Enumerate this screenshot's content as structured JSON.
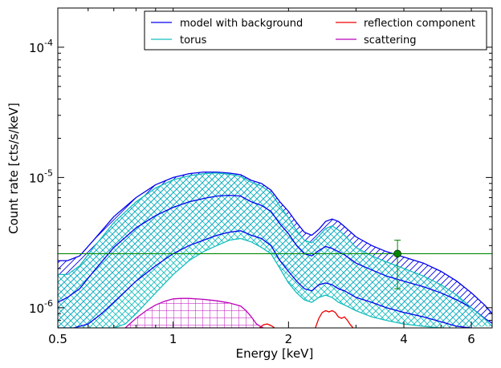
{
  "chart_data": {
    "type": "line",
    "title": "",
    "xlabel": "Energy [keV]",
    "ylabel": "Count rate [cts/s/keV]",
    "xscale": "log",
    "yscale": "log",
    "xlim": [
      0.5,
      6.8
    ],
    "ylim": [
      7e-07,
      0.0002
    ],
    "x_ticks": [
      {
        "value": 0.5,
        "label": "0.5"
      },
      {
        "value": 1,
        "label": "1"
      },
      {
        "value": 2,
        "label": "2"
      },
      {
        "value": 4,
        "label": "4"
      },
      {
        "value": 6,
        "label": "6"
      }
    ],
    "y_ticks": [
      {
        "value": 1e-06,
        "base": "10",
        "exp": "-6"
      },
      {
        "value": 1e-05,
        "base": "10",
        "exp": "-5"
      },
      {
        "value": 0.0001,
        "base": "10",
        "exp": "-4"
      }
    ],
    "grid": false,
    "legend_position": "top-right",
    "legend": [
      {
        "label": "model with background",
        "color": "#0000ee"
      },
      {
        "label": "reflection component",
        "color": "#ee0000"
      },
      {
        "label": "torus",
        "color": "#17bebe"
      },
      {
        "label": "scattering",
        "color": "#bb00bb"
      }
    ],
    "series": [
      {
        "name": "model with background",
        "color": "#0000ee",
        "hatch": "diagonal",
        "upper": {
          "x": [
            0.5,
            0.53,
            0.57,
            0.62,
            0.7,
            0.8,
            0.9,
            1.0,
            1.1,
            1.2,
            1.3,
            1.4,
            1.5,
            1.6,
            1.7,
            1.8,
            1.9,
            2.0,
            2.1,
            2.2,
            2.3,
            2.4,
            2.5,
            2.6,
            2.7,
            2.8,
            3.0,
            3.3,
            3.6,
            4.0,
            4.5,
            5.0,
            5.5,
            6.0,
            6.5,
            6.8
          ],
          "y": [
            2.3e-06,
            2.3e-06,
            2.5e-06,
            3.3e-06,
            5e-06,
            7e-06,
            8.8e-06,
            1e-05,
            1.07e-05,
            1.1e-05,
            1.1e-05,
            1.08e-05,
            1.05e-05,
            9.5e-06,
            9e-06,
            8e-06,
            6.5e-06,
            5.5e-06,
            4.5e-06,
            3.8e-06,
            3.6e-06,
            4e-06,
            4.6e-06,
            4.8e-06,
            4.6e-06,
            4.2e-06,
            3.5e-06,
            3e-06,
            2.7e-06,
            2.45e-06,
            2.2e-06,
            1.9e-06,
            1.6e-06,
            1.3e-06,
            1.05e-06,
            9e-07
          ]
        },
        "median": {
          "x": [
            0.5,
            0.53,
            0.57,
            0.62,
            0.7,
            0.8,
            0.9,
            1.0,
            1.1,
            1.2,
            1.3,
            1.4,
            1.5,
            1.6,
            1.7,
            1.8,
            1.9,
            2.0,
            2.1,
            2.2,
            2.3,
            2.4,
            2.5,
            2.6,
            2.7,
            2.8,
            3.0,
            3.3,
            3.6,
            4.0,
            4.5,
            5.0,
            5.5,
            6.0,
            6.5,
            6.8
          ],
          "y": [
            1.1e-06,
            1.2e-06,
            1.4e-06,
            1.9e-06,
            2.9e-06,
            4.1e-06,
            5.1e-06,
            5.9e-06,
            6.5e-06,
            6.9e-06,
            7.2e-06,
            7.3e-06,
            7.2e-06,
            6.5e-06,
            6.1e-06,
            5.5e-06,
            4.4e-06,
            3.7e-06,
            3e-06,
            2.6e-06,
            2.5e-06,
            2.75e-06,
            2.95e-06,
            2.85e-06,
            2.7e-06,
            2.55e-06,
            2.2e-06,
            1.95e-06,
            1.75e-06,
            1.6e-06,
            1.45e-06,
            1.3e-06,
            1.15e-06,
            1e-06,
            8.3e-07,
            7.6e-07
          ]
        },
        "lower": {
          "x": [
            0.5,
            0.55,
            0.6,
            0.65,
            0.7,
            0.8,
            0.9,
            1.0,
            1.1,
            1.2,
            1.3,
            1.4,
            1.5,
            1.6,
            1.7,
            1.8,
            1.9,
            2.0,
            2.1,
            2.2,
            2.3,
            2.4,
            2.5,
            2.6,
            2.7,
            2.8,
            3.0,
            3.3,
            3.6,
            4.0,
            4.5,
            5.0,
            5.5,
            6.0
          ],
          "y": [
            7e-07,
            7e-07,
            7.5e-07,
            9e-07,
            1.1e-06,
            1.6e-06,
            2.1e-06,
            2.6e-06,
            3e-06,
            3.3e-06,
            3.6e-06,
            3.8e-06,
            3.9e-06,
            3.6e-06,
            3.4e-06,
            3e-06,
            2.3e-06,
            1.9e-06,
            1.6e-06,
            1.4e-06,
            1.35e-06,
            1.5e-06,
            1.55e-06,
            1.5e-06,
            1.4e-06,
            1.35e-06,
            1.2e-06,
            1.1e-06,
            1e-06,
            9.2e-07,
            8.5e-07,
            7.8e-07,
            7.2e-07,
            7e-07
          ]
        }
      },
      {
        "name": "torus",
        "color": "#17bebe",
        "hatch": "cross",
        "upper": {
          "x": [
            0.5,
            0.53,
            0.57,
            0.62,
            0.7,
            0.8,
            0.9,
            1.0,
            1.1,
            1.2,
            1.3,
            1.4,
            1.5,
            1.6,
            1.7,
            1.8,
            1.9,
            2.0,
            2.1,
            2.2,
            2.3,
            2.4,
            2.5,
            2.6,
            2.7,
            2.8,
            3.0,
            3.3,
            3.6,
            4.0,
            4.5,
            5.0,
            5.5,
            6.0,
            6.5,
            6.8
          ],
          "y": [
            1.8e-06,
            1.8e-06,
            2.1e-06,
            2.9e-06,
            4.5e-06,
            6.5e-06,
            8.3e-06,
            9.6e-06,
            1.03e-05,
            1.07e-05,
            1.08e-05,
            1.06e-05,
            1.02e-05,
            9.2e-06,
            8.6e-06,
            7.6e-06,
            6e-06,
            4.9e-06,
            3.9e-06,
            3.3e-06,
            3.15e-06,
            3.55e-06,
            4.05e-06,
            4.25e-06,
            3.95e-06,
            3.6e-06,
            2.9e-06,
            2.5e-06,
            2.25e-06,
            2e-06,
            1.75e-06,
            1.5e-06,
            1.25e-06,
            1e-06,
            8.2e-07,
            7.2e-07
          ]
        },
        "lower": {
          "x": [
            0.5,
            0.6,
            0.7,
            0.75,
            0.8,
            0.9,
            1.0,
            1.1,
            1.2,
            1.3,
            1.4,
            1.5,
            1.6,
            1.7,
            1.8,
            1.9,
            2.0,
            2.1,
            2.2,
            2.3,
            2.4,
            2.5,
            2.6,
            2.7,
            2.8,
            3.0,
            3.3,
            3.6,
            4.0,
            4.5,
            5.0
          ],
          "y": [
            7e-07,
            7e-07,
            7e-07,
            7.5e-07,
            9e-07,
            1.3e-06,
            1.8e-06,
            2.3e-06,
            2.7e-06,
            3e-06,
            3.3e-06,
            3.4e-06,
            3.2e-06,
            2.9e-06,
            2.6e-06,
            2e-06,
            1.55e-06,
            1.3e-06,
            1.15e-06,
            1.1e-06,
            1.2e-06,
            1.25e-06,
            1.2e-06,
            1.1e-06,
            1.05e-06,
            9.5e-07,
            8.5e-07,
            8e-07,
            7.5e-07,
            7.2e-07,
            7e-07
          ]
        }
      },
      {
        "name": "scattering",
        "color": "#bb00bb",
        "hatch": "grid",
        "upper": {
          "x": [
            0.75,
            0.8,
            0.85,
            0.9,
            0.95,
            1.0,
            1.05,
            1.1,
            1.2,
            1.3,
            1.4,
            1.5,
            1.55,
            1.6,
            1.65,
            1.7,
            1.72
          ],
          "y": [
            7e-07,
            8.3e-07,
            9.5e-07,
            1.05e-06,
            1.12e-06,
            1.17e-06,
            1.18e-06,
            1.18e-06,
            1.16e-06,
            1.13e-06,
            1.09e-06,
            1.03e-06,
            9.5e-07,
            8.5e-07,
            7.5e-07,
            7.1e-07,
            7e-07
          ]
        },
        "lower": {
          "x": [
            0.75,
            1.72
          ],
          "y": [
            7e-07,
            7e-07
          ]
        }
      },
      {
        "name": "reflection component",
        "color": "#ee0000",
        "hatch": "none",
        "segments": [
          {
            "x": [
              1.68,
              1.72,
              1.76,
              1.8,
              1.84
            ],
            "y": [
              7e-07,
              7.4e-07,
              7.5e-07,
              7.3e-07,
              7e-07
            ]
          },
          {
            "x": [
              2.35,
              2.4,
              2.45,
              2.5,
              2.55,
              2.6,
              2.65,
              2.7,
              2.75,
              2.8,
              2.85,
              2.9,
              2.95
            ],
            "y": [
              7e-07,
              8.3e-07,
              9.2e-07,
              9.5e-07,
              9.3e-07,
              9.5e-07,
              9.2e-07,
              8.5e-07,
              8.3e-07,
              8.5e-07,
              8e-07,
              7.4e-07,
              7e-07
            ]
          }
        ]
      }
    ],
    "background_level": {
      "y": 2.6e-06,
      "color": "#008800"
    },
    "data_points": [
      {
        "x": 3.85,
        "y": 2.6e-06,
        "y_low": 1.4e-06,
        "y_high": 3.3e-06,
        "color": "#008800"
      }
    ]
  }
}
